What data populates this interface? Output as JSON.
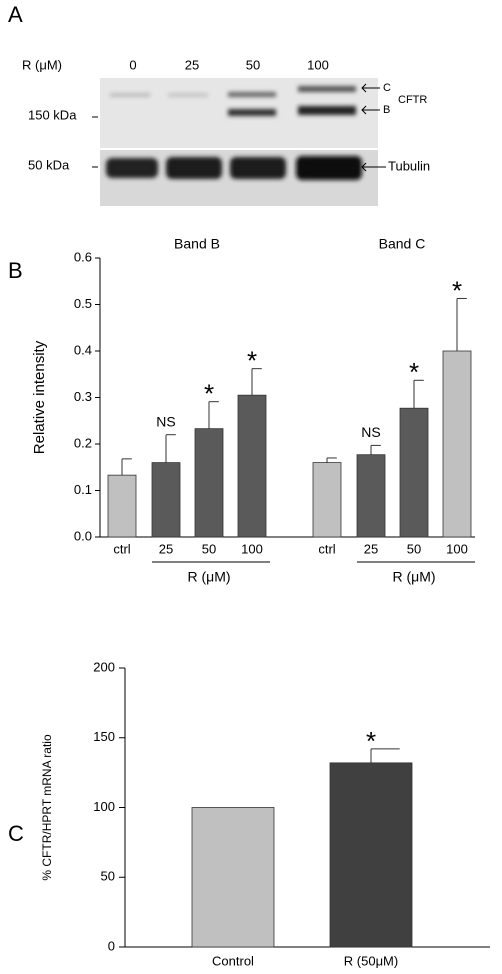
{
  "panel_labels": [
    "A",
    "B",
    "C"
  ],
  "blot": {
    "axis_label": "R (μM)",
    "lanes": [
      "0",
      "25",
      "50",
      "100"
    ],
    "markers": [
      "150 kDa",
      "50 kDa"
    ],
    "band_labels": [
      "C",
      "B"
    ],
    "protein": "CFTR",
    "loading": "Tubulin"
  },
  "chart_data": [
    {
      "type": "bar",
      "ylabel": "Relative intensity",
      "ylim": [
        0,
        0.6
      ],
      "yticks": [
        {
          "value": 0,
          "label": "0.0"
        },
        0.1,
        0.2,
        0.3,
        0.4,
        0.5,
        0.6
      ],
      "groups": [
        {
          "title": "Band B",
          "categories": [
            "ctrl",
            "25",
            "50",
            "100"
          ],
          "values": [
            0.133,
            0.16,
            0.233,
            0.305
          ],
          "errors": [
            0.035,
            0.06,
            0.058,
            0.057
          ],
          "colors": [
            "#c0c0c0",
            "#5a5a5a",
            "#5a5a5a",
            "#5a5a5a"
          ],
          "annotations": [
            null,
            "NS",
            "*",
            "*"
          ],
          "range_label": "R (μM)"
        },
        {
          "title": "Band C",
          "categories": [
            "ctrl",
            "25",
            "50",
            "100"
          ],
          "values": [
            0.16,
            0.177,
            0.277,
            0.4
          ],
          "errors": [
            0.01,
            0.02,
            0.06,
            0.113
          ],
          "colors": [
            "#c0c0c0",
            "#5a5a5a",
            "#5a5a5a",
            "#c0c0c0"
          ],
          "annotations": [
            null,
            "NS",
            "*",
            "*"
          ],
          "range_label": "R (μM)"
        }
      ]
    },
    {
      "type": "bar",
      "ylabel": "% CFTR/HPRT mRNA ratio",
      "ylim": [
        0,
        200
      ],
      "yticks": [
        0,
        50,
        100,
        150,
        200
      ],
      "categories": [
        "Control",
        "R (50μM)"
      ],
      "values": [
        100,
        132
      ],
      "errors": [
        null,
        10
      ],
      "colors": [
        "#c0c0c0",
        "#404040"
      ],
      "annotations": [
        null,
        "*"
      ]
    }
  ]
}
